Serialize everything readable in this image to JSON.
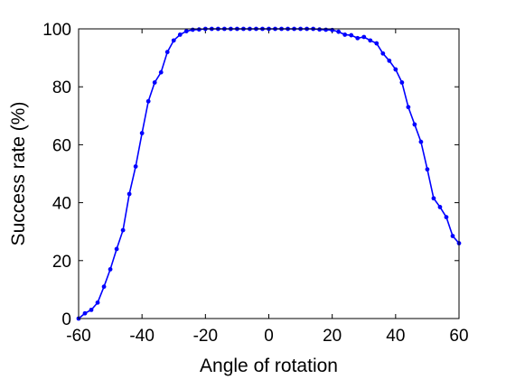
{
  "chart_data": {
    "type": "line",
    "title": "",
    "xlabel": "Angle of rotation",
    "ylabel": "Success rate (%)",
    "xlim": [
      -60,
      60
    ],
    "ylim": [
      0,
      100
    ],
    "xticks": [
      -60,
      -40,
      -20,
      0,
      20,
      40,
      60
    ],
    "yticks": [
      0,
      20,
      40,
      60,
      80,
      100
    ],
    "xtick_labels": [
      "-60",
      "-40",
      "-20",
      "0",
      "20",
      "40",
      "60"
    ],
    "ytick_labels": [
      "0",
      "20",
      "40",
      "60",
      "80",
      "100"
    ],
    "grid": false,
    "legend": "none",
    "series": [
      {
        "color": "#0000ff",
        "marker": "dot",
        "x": [
          -60,
          -58,
          -56,
          -54,
          -52,
          -50,
          -48,
          -46,
          -44,
          -42,
          -40,
          -38,
          -36,
          -34,
          -32,
          -30,
          -28,
          -26,
          -24,
          -22,
          -20,
          -18,
          -16,
          -14,
          -12,
          -10,
          -8,
          -6,
          -4,
          -2,
          0,
          2,
          4,
          6,
          8,
          10,
          12,
          14,
          16,
          18,
          20,
          22,
          24,
          26,
          28,
          30,
          32,
          34,
          36,
          38,
          40,
          42,
          44,
          46,
          48,
          50,
          52,
          54,
          56,
          58,
          60
        ],
        "y": [
          0,
          1.8,
          3,
          5.5,
          11,
          17,
          24,
          30.5,
          43,
          52.5,
          64,
          75,
          81.5,
          85,
          92,
          96,
          98,
          99.2,
          99.7,
          99.8,
          100,
          100,
          100,
          100,
          100,
          100,
          100,
          100,
          100,
          100,
          100,
          100,
          100,
          100,
          100,
          100,
          100,
          100,
          99.8,
          99.7,
          99.6,
          99,
          98,
          97.8,
          96.8,
          97.2,
          96,
          95,
          91.5,
          89,
          86,
          81.5,
          73,
          67,
          61,
          51.5,
          41.5,
          38.5,
          35,
          28.5,
          26
        ]
      }
    ]
  }
}
